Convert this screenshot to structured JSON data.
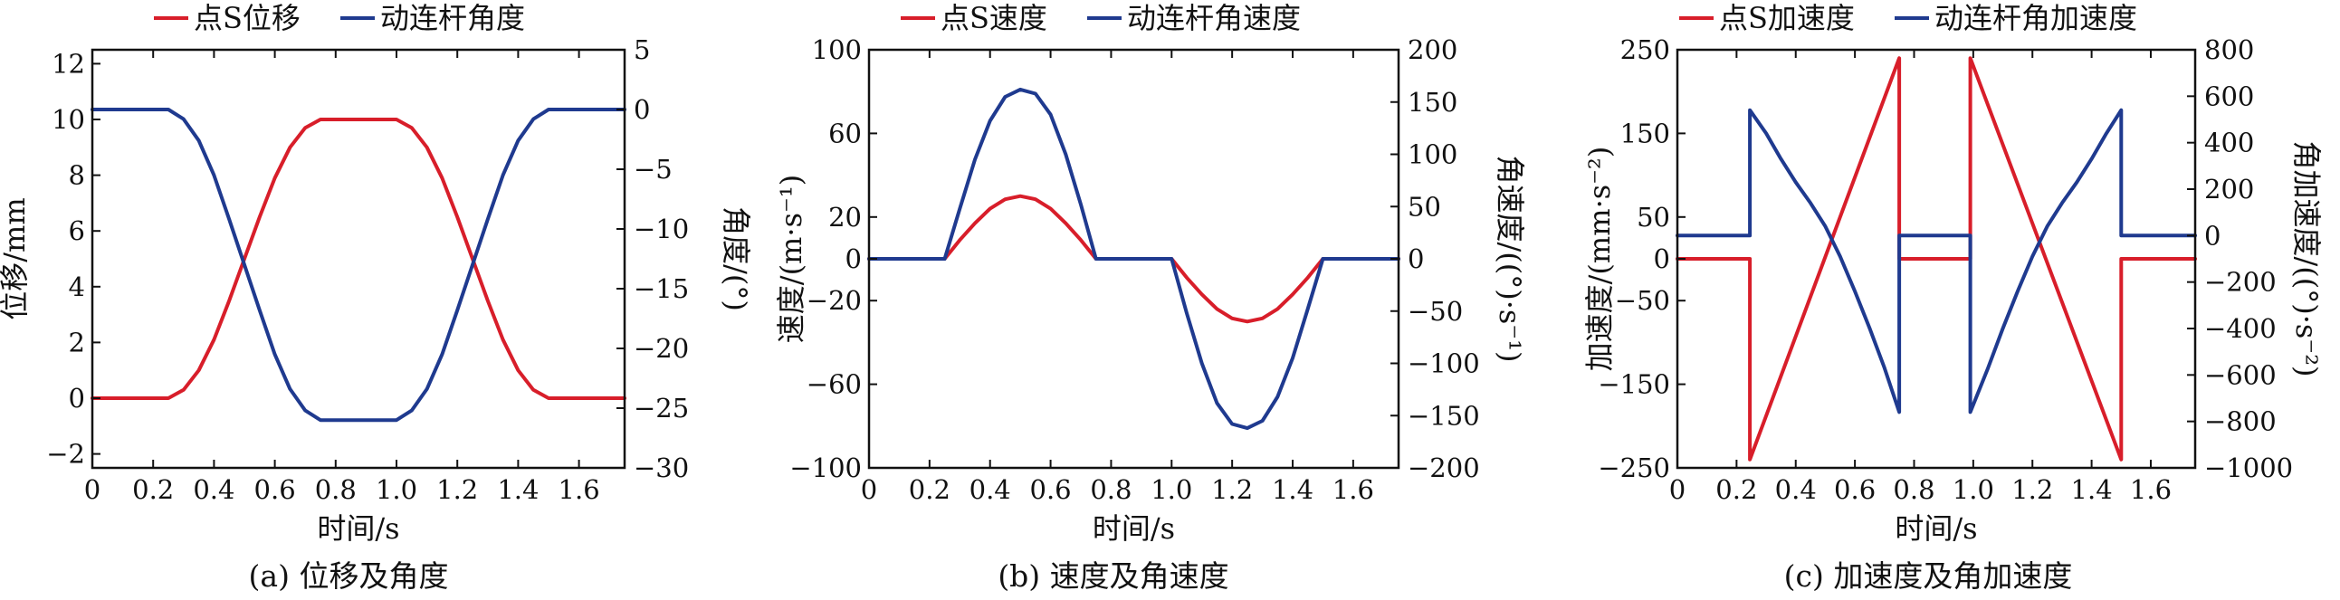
{
  "colors": {
    "red": "#d81e2a",
    "blue": "#1f3a8f",
    "axis": "#111111"
  },
  "chart_data": [
    {
      "type": "line",
      "caption": "(a) 位移及角度",
      "xlabel": "时间/s",
      "ylabel_left": "位移/mm",
      "ylabel_right": "角度/(°)",
      "xlim": [
        0,
        1.75
      ],
      "ylim_left": [
        -2.5,
        12.5
      ],
      "ylim_right": [
        -30,
        5
      ],
      "xticks": [
        0,
        0.2,
        0.4,
        0.6,
        0.8,
        1.0,
        1.2,
        1.4,
        1.6
      ],
      "xtick_labels": [
        "0",
        "0.2",
        "0.4",
        "0.6",
        "0.8",
        "1.0",
        "1.2",
        "1.4",
        "1.6"
      ],
      "yticks_left": [
        -2,
        0,
        2,
        4,
        6,
        8,
        10,
        12
      ],
      "ytick_labels_left": [
        "−2",
        "0",
        "2",
        "4",
        "6",
        "8",
        "10",
        "12"
      ],
      "yticks_right": [
        -30,
        -25,
        -20,
        -15,
        -10,
        -5,
        0,
        5
      ],
      "ytick_labels_right": [
        "−30",
        "−25",
        "−20",
        "−15",
        "−10",
        "−5",
        "0",
        "5"
      ],
      "legend": [
        "点S位移",
        "动连杆角度"
      ],
      "series": [
        {
          "name": "点S位移",
          "axis": "left",
          "color": "red",
          "x": [
            0,
            0.25,
            0.3,
            0.35,
            0.4,
            0.45,
            0.5,
            0.55,
            0.6,
            0.65,
            0.7,
            0.75,
            1.0,
            1.05,
            1.1,
            1.15,
            1.2,
            1.25,
            1.3,
            1.35,
            1.4,
            1.45,
            1.5,
            1.75
          ],
          "y": [
            0,
            0,
            0.3,
            1.0,
            2.1,
            3.5,
            5.0,
            6.5,
            7.9,
            9.0,
            9.7,
            10,
            10,
            9.7,
            9.0,
            7.9,
            6.5,
            5.0,
            3.5,
            2.1,
            1.0,
            0.3,
            0,
            0
          ]
        },
        {
          "name": "动连杆角度",
          "axis": "right",
          "color": "blue",
          "x": [
            0,
            0.25,
            0.3,
            0.35,
            0.4,
            0.45,
            0.5,
            0.55,
            0.6,
            0.65,
            0.7,
            0.75,
            1.0,
            1.05,
            1.1,
            1.15,
            1.2,
            1.25,
            1.3,
            1.35,
            1.4,
            1.45,
            1.5,
            1.75
          ],
          "y": [
            0,
            0,
            -0.8,
            -2.6,
            -5.5,
            -9.2,
            -13.0,
            -16.8,
            -20.5,
            -23.4,
            -25.2,
            -26,
            -26,
            -25.2,
            -23.4,
            -20.5,
            -16.8,
            -13.0,
            -9.2,
            -5.5,
            -2.6,
            -0.8,
            0,
            0
          ]
        }
      ]
    },
    {
      "type": "line",
      "caption": "(b) 速度及角速度",
      "xlabel": "时间/s",
      "ylabel_left": "速度/(m·s⁻¹)",
      "ylabel_right": "角速度/((°)·s⁻¹)",
      "xlim": [
        0,
        1.75
      ],
      "ylim_left": [
        -100,
        100
      ],
      "ylim_right": [
        -200,
        200
      ],
      "xticks": [
        0,
        0.2,
        0.4,
        0.6,
        0.8,
        1.0,
        1.2,
        1.4,
        1.6
      ],
      "xtick_labels": [
        "0",
        "0.2",
        "0.4",
        "0.6",
        "0.8",
        "1.0",
        "1.2",
        "1.4",
        "1.6"
      ],
      "yticks_left": [
        -100,
        -60,
        -20,
        0,
        20,
        60,
        100
      ],
      "ytick_labels_left": [
        "−100",
        "−60",
        "−20",
        "0",
        "20",
        "60",
        "100"
      ],
      "yticks_right": [
        -200,
        -150,
        -100,
        -50,
        0,
        50,
        100,
        150,
        200
      ],
      "ytick_labels_right": [
        "−200",
        "−150",
        "−100",
        "−50",
        "0",
        "50",
        "100",
        "150",
        "200"
      ],
      "legend": [
        "点S速度",
        "动连杆角速度"
      ],
      "series": [
        {
          "name": "点S速度",
          "axis": "left",
          "color": "red",
          "x": [
            0,
            0.25,
            0.3,
            0.35,
            0.4,
            0.45,
            0.5,
            0.55,
            0.6,
            0.65,
            0.7,
            0.75,
            1.0,
            1.05,
            1.1,
            1.15,
            1.2,
            1.25,
            1.3,
            1.35,
            1.4,
            1.45,
            1.5,
            1.75
          ],
          "y": [
            0,
            0,
            9,
            17,
            24,
            28.5,
            30,
            28.5,
            24,
            17,
            9,
            0,
            0,
            -9,
            -17,
            -24,
            -28.5,
            -30,
            -28.5,
            -24,
            -17,
            -9,
            0,
            0
          ]
        },
        {
          "name": "动连杆角速度",
          "axis": "right",
          "color": "blue",
          "x": [
            0,
            0.25,
            0.3,
            0.35,
            0.4,
            0.45,
            0.5,
            0.55,
            0.6,
            0.65,
            0.7,
            0.75,
            1.0,
            1.05,
            1.1,
            1.15,
            1.2,
            1.25,
            1.3,
            1.35,
            1.4,
            1.45,
            1.5,
            1.75
          ],
          "y": [
            0,
            0,
            48,
            95,
            132,
            155,
            162,
            158,
            138,
            100,
            52,
            0,
            0,
            -52,
            -100,
            -138,
            -158,
            -162,
            -155,
            -132,
            -95,
            -48,
            0,
            0
          ]
        }
      ]
    },
    {
      "type": "line",
      "caption": "(c) 加速度及角加速度",
      "xlabel": "时间/s",
      "ylabel_left": "加速度/(mm·s⁻²)",
      "ylabel_right": "角加速度/((°)·s⁻²)",
      "xlim": [
        0,
        1.75
      ],
      "ylim_left": [
        -250,
        250
      ],
      "ylim_right": [
        -1000,
        800
      ],
      "xticks": [
        0,
        0.2,
        0.4,
        0.6,
        0.8,
        1.0,
        1.2,
        1.4,
        1.6
      ],
      "xtick_labels": [
        "0",
        "0.2",
        "0.4",
        "0.6",
        "0.8",
        "1.0",
        "1.2",
        "1.4",
        "1.6"
      ],
      "yticks_left": [
        -250,
        -150,
        -50,
        0,
        50,
        150,
        250
      ],
      "ytick_labels_left": [
        "−250",
        "−150",
        "−50",
        "0",
        "50",
        "150",
        "250"
      ],
      "yticks_right": [
        -1000,
        -800,
        -600,
        -400,
        -200,
        0,
        200,
        400,
        600,
        800
      ],
      "ytick_labels_right": [
        "−1000",
        "−800",
        "−600",
        "−400",
        "−200",
        "0",
        "200",
        "400",
        "600",
        "800"
      ],
      "legend": [
        "点S加速度",
        "动连杆角加速度"
      ],
      "series": [
        {
          "name": "点S加速度",
          "axis": "left",
          "color": "red",
          "x": [
            0,
            0.245,
            0.245,
            0.75,
            0.75,
            0.99,
            0.99,
            1.5,
            1.5,
            1.75
          ],
          "y": [
            0,
            0,
            -240,
            240,
            0,
            0,
            240,
            -240,
            0,
            0
          ]
        },
        {
          "name": "动连杆角加速度",
          "axis": "right",
          "color": "blue",
          "x": [
            0,
            0.245,
            0.245,
            0.3,
            0.35,
            0.4,
            0.45,
            0.5,
            0.55,
            0.6,
            0.65,
            0.7,
            0.75,
            0.75,
            0.99,
            0.99,
            1.05,
            1.1,
            1.15,
            1.2,
            1.25,
            1.3,
            1.35,
            1.4,
            1.45,
            1.5,
            1.5,
            1.75
          ],
          "y": [
            0,
            0,
            540,
            440,
            330,
            230,
            140,
            40,
            -90,
            -240,
            -400,
            -570,
            -760,
            0,
            0,
            -760,
            -570,
            -400,
            -240,
            -90,
            40,
            140,
            230,
            330,
            440,
            540,
            0,
            0
          ]
        }
      ]
    }
  ]
}
